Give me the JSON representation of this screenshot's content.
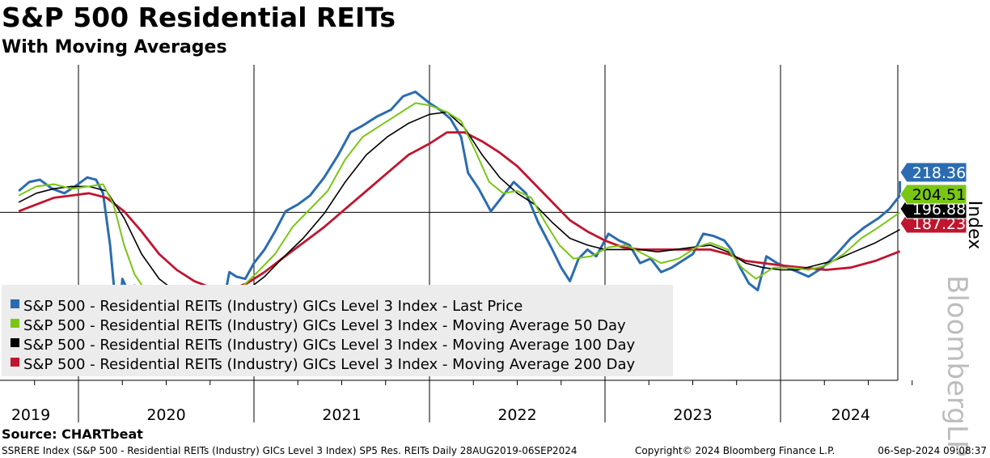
{
  "chart_data": {
    "type": "line",
    "title": "S&P 500 Residential REITs",
    "subtitle": "With Moving Averages",
    "xlabel": "",
    "ylabel": "Index",
    "watermark": "BloombergLP",
    "year_labels": [
      "2019",
      "2020",
      "2021",
      "2022",
      "2023",
      "2024"
    ],
    "xlim": [
      "2019-08-28",
      "2024-09-06"
    ],
    "ylim": [
      130,
      270
    ],
    "reference_line": 204.51,
    "series": [
      {
        "name": "S&P 500 - Residential REITs (Industry) GICs Level 3 Index - Last Price",
        "color": "#2b6cb0",
        "last_label": "218.36",
        "points": [
          [
            2019.66,
            214
          ],
          [
            2019.72,
            218
          ],
          [
            2019.78,
            219
          ],
          [
            2019.85,
            215
          ],
          [
            2019.92,
            213
          ],
          [
            2019.98,
            216
          ],
          [
            2020.05,
            220
          ],
          [
            2020.1,
            219
          ],
          [
            2020.14,
            213
          ],
          [
            2020.18,
            190
          ],
          [
            2020.21,
            165
          ],
          [
            2020.23,
            155
          ],
          [
            2020.25,
            175
          ],
          [
            2020.28,
            170
          ],
          [
            2020.32,
            172
          ],
          [
            2020.36,
            165
          ],
          [
            2020.4,
            168
          ],
          [
            2020.45,
            170
          ],
          [
            2020.5,
            162
          ],
          [
            2020.55,
            158
          ],
          [
            2020.6,
            164
          ],
          [
            2020.66,
            162
          ],
          [
            2020.72,
            163
          ],
          [
            2020.77,
            160
          ],
          [
            2020.8,
            164
          ],
          [
            2020.83,
            166
          ],
          [
            2020.86,
            178
          ],
          [
            2020.9,
            176
          ],
          [
            2020.95,
            175
          ],
          [
            2021.0,
            182
          ],
          [
            2021.06,
            188
          ],
          [
            2021.12,
            196
          ],
          [
            2021.18,
            205
          ],
          [
            2021.25,
            208
          ],
          [
            2021.32,
            212
          ],
          [
            2021.4,
            220
          ],
          [
            2021.48,
            230
          ],
          [
            2021.55,
            240
          ],
          [
            2021.62,
            243
          ],
          [
            2021.7,
            247
          ],
          [
            2021.78,
            250
          ],
          [
            2021.85,
            256
          ],
          [
            2021.92,
            258
          ],
          [
            2022.0,
            253
          ],
          [
            2022.06,
            250
          ],
          [
            2022.12,
            246
          ],
          [
            2022.18,
            238
          ],
          [
            2022.22,
            222
          ],
          [
            2022.28,
            215
          ],
          [
            2022.35,
            205
          ],
          [
            2022.42,
            212
          ],
          [
            2022.48,
            218
          ],
          [
            2022.55,
            213
          ],
          [
            2022.62,
            200
          ],
          [
            2022.7,
            188
          ],
          [
            2022.75,
            180
          ],
          [
            2022.8,
            174
          ],
          [
            2022.85,
            184
          ],
          [
            2022.9,
            188
          ],
          [
            2022.95,
            185
          ],
          [
            2023.02,
            195
          ],
          [
            2023.08,
            192
          ],
          [
            2023.14,
            190
          ],
          [
            2023.2,
            182
          ],
          [
            2023.26,
            184
          ],
          [
            2023.32,
            178
          ],
          [
            2023.38,
            180
          ],
          [
            2023.44,
            183
          ],
          [
            2023.5,
            186
          ],
          [
            2023.56,
            195
          ],
          [
            2023.62,
            194
          ],
          [
            2023.68,
            192
          ],
          [
            2023.72,
            188
          ],
          [
            2023.77,
            180
          ],
          [
            2023.82,
            173
          ],
          [
            2023.87,
            170
          ],
          [
            2023.92,
            185
          ],
          [
            2023.98,
            182
          ],
          [
            2024.04,
            180
          ],
          [
            2024.1,
            178
          ],
          [
            2024.16,
            176
          ],
          [
            2024.24,
            180
          ],
          [
            2024.32,
            186
          ],
          [
            2024.4,
            193
          ],
          [
            2024.48,
            198
          ],
          [
            2024.56,
            202
          ],
          [
            2024.62,
            206
          ],
          [
            2024.68,
            212
          ],
          [
            2024.68,
            218.36
          ]
        ]
      },
      {
        "name": "S&P 500 - Residential REITs (Industry) GICs Level 3 Index - Moving Average 50 Day",
        "color": "#7ac614",
        "last_label": "204.51",
        "points": [
          [
            2019.66,
            212
          ],
          [
            2019.76,
            216
          ],
          [
            2019.86,
            217
          ],
          [
            2019.96,
            215
          ],
          [
            2020.06,
            216
          ],
          [
            2020.14,
            217
          ],
          [
            2020.2,
            208
          ],
          [
            2020.26,
            190
          ],
          [
            2020.32,
            177
          ],
          [
            2020.38,
            170
          ],
          [
            2020.46,
            168
          ],
          [
            2020.54,
            166
          ],
          [
            2020.62,
            163
          ],
          [
            2020.7,
            162
          ],
          [
            2020.78,
            162
          ],
          [
            2020.86,
            166
          ],
          [
            2020.94,
            172
          ],
          [
            2021.02,
            178
          ],
          [
            2021.12,
            186
          ],
          [
            2021.22,
            198
          ],
          [
            2021.32,
            206
          ],
          [
            2021.42,
            214
          ],
          [
            2021.52,
            228
          ],
          [
            2021.62,
            238
          ],
          [
            2021.72,
            243
          ],
          [
            2021.82,
            248
          ],
          [
            2021.92,
            253
          ],
          [
            2022.0,
            252
          ],
          [
            2022.1,
            249
          ],
          [
            2022.18,
            245
          ],
          [
            2022.26,
            232
          ],
          [
            2022.34,
            218
          ],
          [
            2022.42,
            213
          ],
          [
            2022.5,
            214
          ],
          [
            2022.58,
            211
          ],
          [
            2022.66,
            200
          ],
          [
            2022.74,
            190
          ],
          [
            2022.82,
            184
          ],
          [
            2022.92,
            185
          ],
          [
            2023.02,
            189
          ],
          [
            2023.12,
            190
          ],
          [
            2023.22,
            186
          ],
          [
            2023.32,
            182
          ],
          [
            2023.42,
            184
          ],
          [
            2023.52,
            189
          ],
          [
            2023.6,
            191
          ],
          [
            2023.7,
            188
          ],
          [
            2023.78,
            180
          ],
          [
            2023.86,
            175
          ],
          [
            2023.96,
            180
          ],
          [
            2024.06,
            180
          ],
          [
            2024.16,
            179
          ],
          [
            2024.26,
            181
          ],
          [
            2024.36,
            186
          ],
          [
            2024.46,
            193
          ],
          [
            2024.56,
            198
          ],
          [
            2024.68,
            204.51
          ]
        ]
      },
      {
        "name": "S&P 500 - Residential REITs (Industry) GICs Level 3 Index - Moving Average 100 Day",
        "color": "#000000",
        "last_label": "196.88",
        "points": [
          [
            2019.66,
            209
          ],
          [
            2019.76,
            213
          ],
          [
            2019.86,
            215
          ],
          [
            2019.96,
            216
          ],
          [
            2020.06,
            216
          ],
          [
            2020.16,
            214
          ],
          [
            2020.26,
            202
          ],
          [
            2020.36,
            186
          ],
          [
            2020.46,
            175
          ],
          [
            2020.56,
            169
          ],
          [
            2020.66,
            166
          ],
          [
            2020.76,
            164
          ],
          [
            2020.86,
            165
          ],
          [
            2020.96,
            170
          ],
          [
            2021.06,
            176
          ],
          [
            2021.16,
            184
          ],
          [
            2021.28,
            193
          ],
          [
            2021.4,
            204
          ],
          [
            2021.52,
            218
          ],
          [
            2021.64,
            230
          ],
          [
            2021.76,
            238
          ],
          [
            2021.88,
            244
          ],
          [
            2022.0,
            248
          ],
          [
            2022.1,
            249
          ],
          [
            2022.2,
            242
          ],
          [
            2022.3,
            230
          ],
          [
            2022.4,
            220
          ],
          [
            2022.5,
            213
          ],
          [
            2022.6,
            208
          ],
          [
            2022.7,
            200
          ],
          [
            2022.8,
            193
          ],
          [
            2022.9,
            190
          ],
          [
            2023.0,
            188
          ],
          [
            2023.1,
            188
          ],
          [
            2023.2,
            188
          ],
          [
            2023.3,
            187
          ],
          [
            2023.4,
            188
          ],
          [
            2023.5,
            189
          ],
          [
            2023.6,
            190
          ],
          [
            2023.7,
            187
          ],
          [
            2023.8,
            182
          ],
          [
            2023.9,
            180
          ],
          [
            2024.0,
            179
          ],
          [
            2024.1,
            179
          ],
          [
            2024.2,
            181
          ],
          [
            2024.3,
            183
          ],
          [
            2024.42,
            187
          ],
          [
            2024.54,
            191
          ],
          [
            2024.68,
            196.88
          ]
        ]
      },
      {
        "name": "S&P 500 - Residential REITs (Industry) GICs Level 3 Index - Moving Average 200 Day",
        "color": "#c0152f",
        "last_label": "187.23",
        "points": [
          [
            2019.66,
            205
          ],
          [
            2019.76,
            208
          ],
          [
            2019.86,
            211
          ],
          [
            2019.96,
            212
          ],
          [
            2020.06,
            213
          ],
          [
            2020.16,
            211
          ],
          [
            2020.26,
            205
          ],
          [
            2020.36,
            196
          ],
          [
            2020.46,
            186
          ],
          [
            2020.56,
            179
          ],
          [
            2020.66,
            174
          ],
          [
            2020.76,
            171
          ],
          [
            2020.86,
            170
          ],
          [
            2020.96,
            173
          ],
          [
            2021.06,
            178
          ],
          [
            2021.16,
            184
          ],
          [
            2021.28,
            191
          ],
          [
            2021.4,
            198
          ],
          [
            2021.52,
            206
          ],
          [
            2021.64,
            214
          ],
          [
            2021.76,
            222
          ],
          [
            2021.88,
            230
          ],
          [
            2022.0,
            235
          ],
          [
            2022.1,
            240
          ],
          [
            2022.2,
            240
          ],
          [
            2022.3,
            236
          ],
          [
            2022.4,
            231
          ],
          [
            2022.5,
            225
          ],
          [
            2022.6,
            217
          ],
          [
            2022.7,
            209
          ],
          [
            2022.8,
            201
          ],
          [
            2022.9,
            196
          ],
          [
            2023.0,
            192
          ],
          [
            2023.1,
            189
          ],
          [
            2023.2,
            188
          ],
          [
            2023.3,
            188
          ],
          [
            2023.4,
            188
          ],
          [
            2023.5,
            188
          ],
          [
            2023.6,
            188
          ],
          [
            2023.7,
            186
          ],
          [
            2023.8,
            183
          ],
          [
            2023.9,
            182
          ],
          [
            2024.0,
            181
          ],
          [
            2024.12,
            180
          ],
          [
            2024.26,
            179
          ],
          [
            2024.4,
            180
          ],
          [
            2024.54,
            183
          ],
          [
            2024.68,
            187.23
          ]
        ]
      }
    ]
  },
  "source": "Source: CHARTbeat",
  "footer": {
    "left": "SSRERE Index (S&P 500 - Residential REITs (Industry) GICs Level 3 Index) SP5 Res. REITs  Daily 28AUG2019-06SEP2024",
    "middle": "Copyright© 2024 Bloomberg Finance L.P.",
    "right": "06-Sep-2024 09:08:37"
  }
}
